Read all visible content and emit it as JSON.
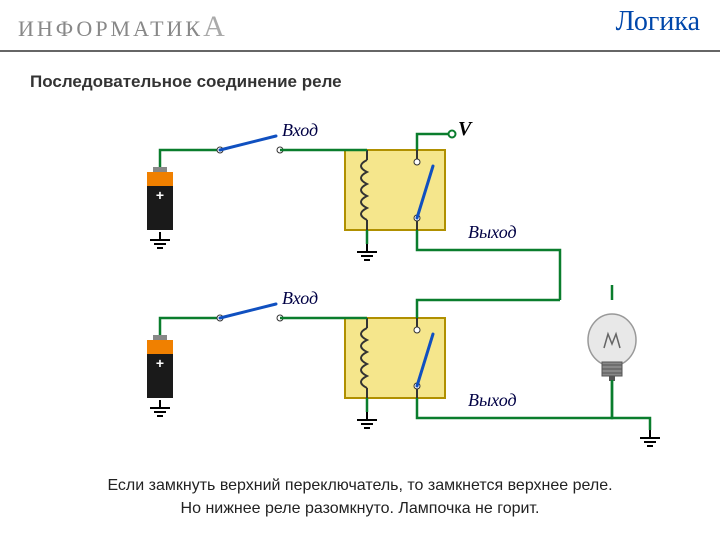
{
  "header": {
    "logo_text": "ИНФОРМАТИК",
    "logo_last": "А",
    "topic": "Логика"
  },
  "title": "Последовательное соединение реле",
  "labels": {
    "in": "Вход",
    "out": "Выход",
    "v": "V"
  },
  "footer": {
    "l1": "Если замкнуть верхний переключатель, то замкнется верхнее реле.",
    "l2": "Но нижнее реле разомкнуто. Лампочка не горит."
  },
  "colors": {
    "wire": "#0a7d2d",
    "relay_fill": "#f5e68c",
    "relay_stroke": "#b09000",
    "coil": "#333",
    "bat_body": "#1a1a1a",
    "bat_top": "#f08000",
    "bat_tip": "#888",
    "ground": "#000",
    "bulb_glass": "#e8e8e8",
    "bulb_base": "#888",
    "switch": "#1050c0"
  },
  "geom": {
    "relay_w": 100,
    "relay_h": 80
  }
}
